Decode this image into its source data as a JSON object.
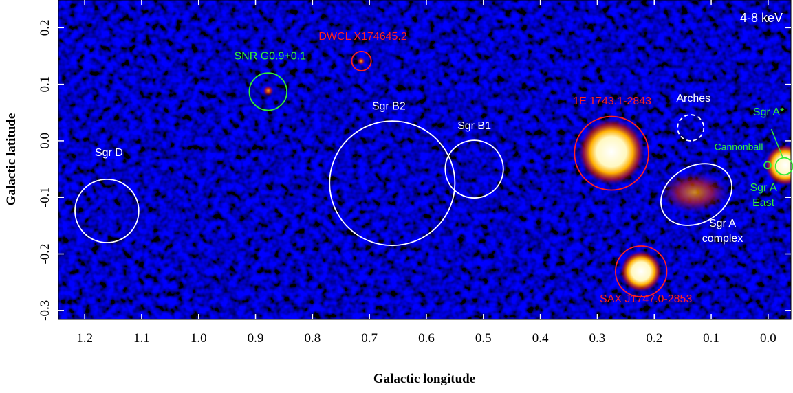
{
  "chart_data": {
    "type": "image",
    "xlabel": "Galactic longitude",
    "ylabel": "Galactic latitude",
    "band_label": "4-8 keV",
    "xlim": [
      1.246,
      -0.04
    ],
    "ylim": [
      -0.316,
      0.249
    ],
    "xticks": [
      1.2,
      1.1,
      {
        "value": 1,
        "label": "1.0"
      },
      0.9,
      0.8,
      0.7,
      0.6,
      0.5,
      0.4,
      0.3,
      0.2,
      0.1,
      {
        "value": 0,
        "label": "0.0"
      }
    ],
    "yticks": [
      0.2,
      0.1,
      {
        "value": 0,
        "label": "0.0"
      },
      -0.1,
      -0.2,
      -0.3
    ],
    "regions": [
      {
        "label": [
          "Sgr D"
        ],
        "color": "#ffffff",
        "x": 1.161,
        "y": -0.124,
        "r": 0.056
      },
      {
        "label": [
          "SNR G0.9+0.1"
        ],
        "color": "#33ee33",
        "x": 0.878,
        "y": 0.087,
        "r": 0.033
      },
      {
        "label": [
          "DWCL X174645.2"
        ],
        "color": "#ff2020",
        "x": 0.714,
        "y": 0.141,
        "r": 0.017
      },
      {
        "label": [
          "Sgr B2"
        ],
        "color": "#ffffff",
        "x": 0.66,
        "y": -0.075,
        "r": 0.11
      },
      {
        "label": [
          "Sgr B1"
        ],
        "color": "#ffffff",
        "x": 0.516,
        "y": -0.05,
        "r": 0.051
      },
      {
        "label": [
          "1E 1743.1-2843"
        ],
        "color": "#ff2020",
        "x": 0.275,
        "y": -0.022,
        "r": 0.065
      },
      {
        "label": [
          "Arches"
        ],
        "color": "#ffffff",
        "x": 0.136,
        "y": 0.023,
        "r": 0.023,
        "dashed": true
      },
      {
        "label": [
          "Sgr A",
          "complex"
        ],
        "color": "#ffffff",
        "x": 0.126,
        "y": -0.095,
        "r": 0.066,
        "ry": 0.05,
        "angle": -30
      },
      {
        "label": [
          "SAX J1747.0-2853"
        ],
        "color": "#ff2020",
        "x": 0.223,
        "y": -0.231,
        "r": 0.045
      },
      {
        "label": [
          "Cannonball"
        ],
        "color": "#33ee33",
        "x": 0.001,
        "y": -0.043,
        "r": 0.006
      },
      {
        "label": [
          "Sgr A",
          "East"
        ],
        "color": "#33ee33",
        "x": -0.028,
        "y": -0.045,
        "r": 0.015
      }
    ],
    "pointers": [
      {
        "label": [
          "Sgr A*"
        ],
        "color": "#33ee33",
        "x": -0.025,
        "y": -0.028
      }
    ]
  }
}
